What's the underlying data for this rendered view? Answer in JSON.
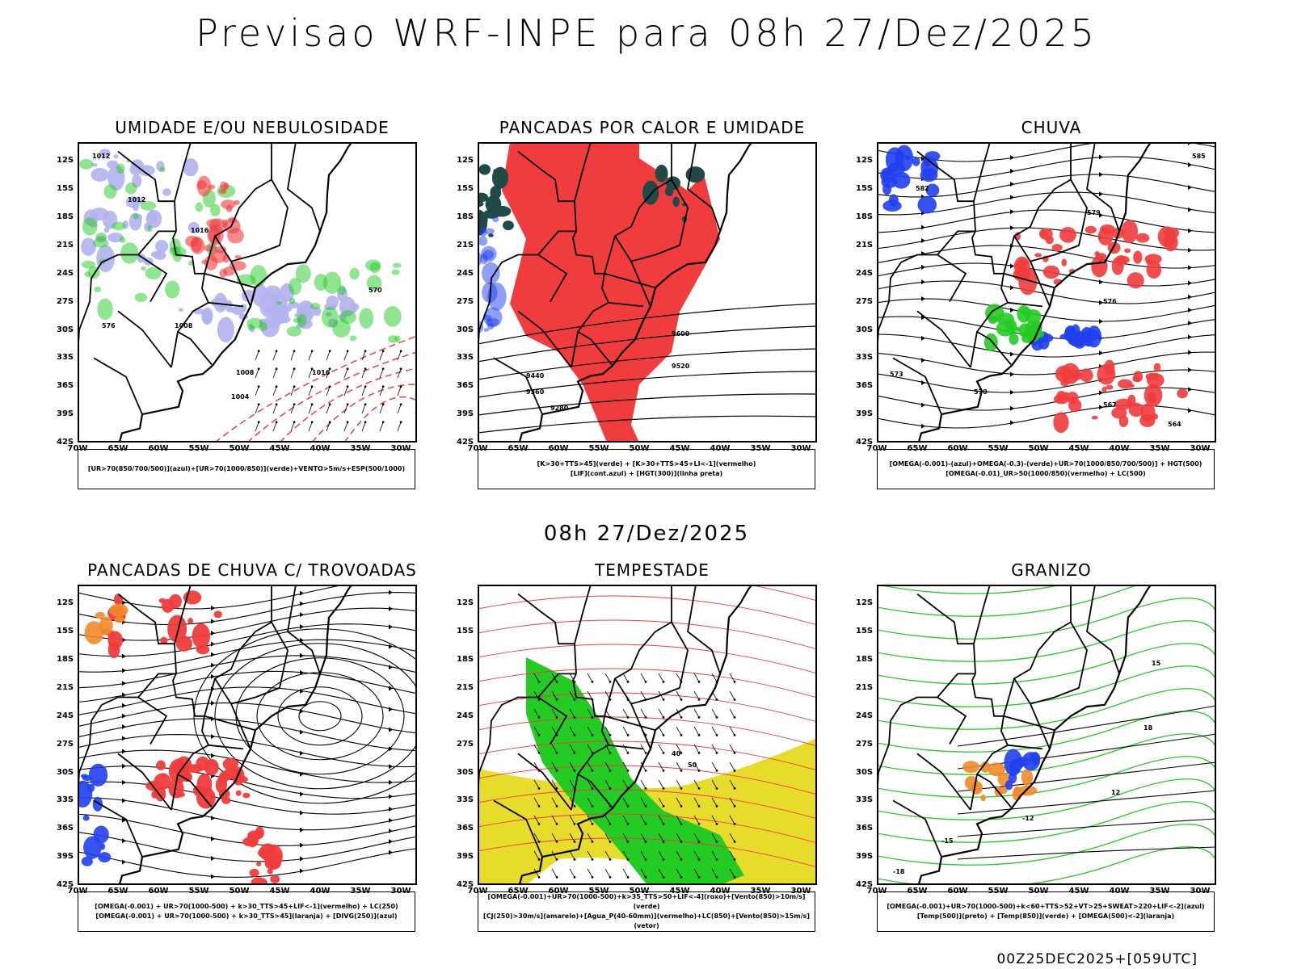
{
  "title": "Previsao WRF-INPE  para 08h 27/Dez/2025",
  "subtitle": "08h 27/Dez/2025",
  "footer": "00Z25DEC2025+[059UTC]",
  "colors": {
    "blue_fill": "#b3b3f0",
    "green": "#22cc22",
    "red": "#f03c3c",
    "blue": "#2040f0",
    "dark_teal": "#1f4a48",
    "yellow": "#e8dc2a",
    "orange": "#f08a2a",
    "black": "#000000"
  },
  "chart_data": [
    {
      "type": "heatmap",
      "title": "UMIDADE E/OU NEBULOSIDADE",
      "x_ticks": [
        "70W",
        "65W",
        "60W",
        "55W",
        "50W",
        "45W",
        "40W",
        "35W",
        "30W"
      ],
      "y_ticks": [
        "12S",
        "15S",
        "18S",
        "21S",
        "24S",
        "27S",
        "30S",
        "33S",
        "36S",
        "39S",
        "42S"
      ],
      "xlim": [
        -70,
        -28
      ],
      "ylim": [
        -42,
        -10
      ],
      "labels": [
        "1012",
        "1012",
        "1016",
        "1008",
        "1004",
        "1008",
        "1016",
        "570",
        "576"
      ],
      "legend": [
        "[UR>70(850/700/500)](azul)+[UR>70(1000/850)](verde)+VENTO>5m/s+ESP(500/1000)"
      ]
    },
    {
      "type": "heatmap",
      "title": "PANCADAS POR CALOR E UMIDADE",
      "x_ticks": [
        "70W",
        "65W",
        "60W",
        "55W",
        "50W",
        "45W",
        "40W",
        "35W",
        "30W"
      ],
      "y_ticks": [
        "12S",
        "15S",
        "18S",
        "21S",
        "24S",
        "27S",
        "30S",
        "33S",
        "36S",
        "39S",
        "42S"
      ],
      "xlim": [
        -70,
        -28
      ],
      "ylim": [
        -42,
        -10
      ],
      "labels": [
        "9600",
        "9520",
        "9440",
        "9360",
        "9280"
      ],
      "legend": [
        "[K>30+TTS>45](verde) + [K>30+TTS>45+LI<-1](vermelho)",
        "[LIF](cont.azul) + [HGT(300)](linha preta)"
      ]
    },
    {
      "type": "heatmap",
      "title": "CHUVA",
      "x_ticks": [
        "70W",
        "65W",
        "60W",
        "55W",
        "50W",
        "45W",
        "40W",
        "35W",
        "30W"
      ],
      "y_ticks": [
        "12S",
        "15S",
        "18S",
        "21S",
        "24S",
        "27S",
        "30S",
        "33S",
        "36S",
        "39S",
        "42S"
      ],
      "xlim": [
        -70,
        -28
      ],
      "ylim": [
        -42,
        -10
      ],
      "labels": [
        "585",
        "582",
        "579",
        "576",
        "573",
        "570",
        "567",
        "564"
      ],
      "legend": [
        "[OMEGA(-0.001)-(azul)+OMEGA(-0.3)-(verde)+UR>70(1000/850/700/500)] + HGT(500)",
        "[OMEGA(-0.01)_UR>50(1000/850)(vermelho) + LC(500)"
      ]
    },
    {
      "type": "heatmap",
      "title": "PANCADAS DE CHUVA C/ TROVOADAS",
      "x_ticks": [
        "70W",
        "65W",
        "60W",
        "55W",
        "50W",
        "45W",
        "40W",
        "35W",
        "30W"
      ],
      "y_ticks": [
        "12S",
        "15S",
        "18S",
        "21S",
        "24S",
        "27S",
        "30S",
        "33S",
        "36S",
        "39S",
        "42S"
      ],
      "xlim": [
        -70,
        -28
      ],
      "ylim": [
        -42,
        -10
      ],
      "labels": [],
      "legend": [
        "[OMEGA(-0.001) + UR>70(1000-500) + k>30_TTS>45+LIF<-1](vermelho) + LC(250)",
        "[OMEGA(-0.001) + UR>70(1000-500) + k>30_TTS>45](laranja) + [DIVG(250)](azul)"
      ]
    },
    {
      "type": "heatmap",
      "title": "TEMPESTADE",
      "x_ticks": [
        "70W",
        "65W",
        "60W",
        "55W",
        "50W",
        "45W",
        "40W",
        "35W",
        "30W"
      ],
      "y_ticks": [
        "12S",
        "15S",
        "18S",
        "21S",
        "24S",
        "27S",
        "30S",
        "33S",
        "36S",
        "39S",
        "42S"
      ],
      "xlim": [
        -70,
        -28
      ],
      "ylim": [
        -42,
        -10
      ],
      "labels": [
        "40",
        "50"
      ],
      "legend": [
        "[OMEGA(-0.001)+UR>70(1000-500)+k>35_TTS>50+LIF<-4](roxo)+[Vento(850)>10m/s](verde)",
        "[CJ(250)>30m/s](amarelo)+[Agua_P(40-60mm)](vermelho)+LC(850)+[Vento(850)>15m/s](vetor)"
      ]
    },
    {
      "type": "heatmap",
      "title": "GRANIZO",
      "x_ticks": [
        "70W",
        "65W",
        "60W",
        "55W",
        "50W",
        "45W",
        "40W",
        "35W",
        "30W"
      ],
      "y_ticks": [
        "12S",
        "15S",
        "18S",
        "21S",
        "24S",
        "27S",
        "30S",
        "33S",
        "36S",
        "39S",
        "42S"
      ],
      "xlim": [
        -70,
        -28
      ],
      "ylim": [
        -42,
        -10
      ],
      "labels": [
        "12",
        "15",
        "18",
        "-12",
        "-15",
        "-18"
      ],
      "legend": [
        "[OMEGA(-0.001)+UR>70(1000-500)+k<60+TTS>52+VT>25+SWEAT>220+LIF<-2](azul)",
        "[Temp(500)](preto) + [Temp(850)](verde) + [OMEGA(500)<-2](laranja)"
      ]
    }
  ]
}
